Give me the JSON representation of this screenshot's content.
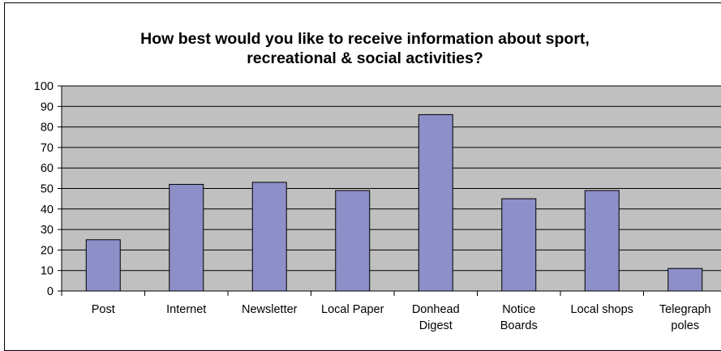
{
  "chart_data": {
    "type": "bar",
    "title_lines": [
      "How best would you like to receive information about sport,",
      "recreational & social activities?"
    ],
    "categories": [
      [
        "Post"
      ],
      [
        "Internet"
      ],
      [
        "Newsletter"
      ],
      [
        "Local Paper"
      ],
      [
        "Donhead",
        "Digest"
      ],
      [
        "Notice",
        "Boards"
      ],
      [
        "Local shops"
      ],
      [
        "Telegraph",
        "poles"
      ]
    ],
    "values": [
      25,
      52,
      53,
      49,
      86,
      45,
      49,
      11
    ],
    "ylim": [
      0,
      100
    ],
    "yticks": [
      "0",
      "10",
      "20",
      "30",
      "40",
      "50",
      "60",
      "70",
      "80",
      "90",
      "100"
    ],
    "grid": true,
    "legend": "none",
    "colors": {
      "bar_fill": "#8c8fc8",
      "plot_bg": "#c0c0c0",
      "gridline": "#000000"
    }
  }
}
